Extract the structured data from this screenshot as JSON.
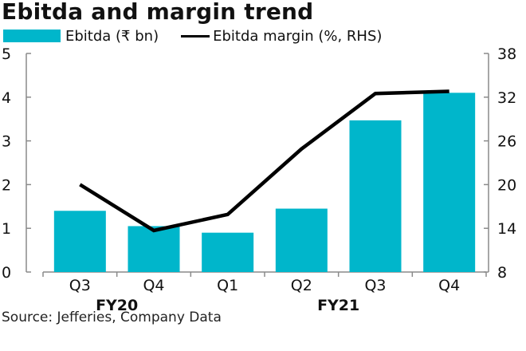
{
  "chart_data": {
    "type": "bar",
    "title": "Ebitda and margin trend",
    "categories": [
      "Q3",
      "Q4",
      "Q1",
      "Q2",
      "Q3",
      "Q4"
    ],
    "groups": [
      {
        "label": "FY20",
        "categories_index": [
          0,
          1
        ]
      },
      {
        "label": "FY21",
        "categories_index": [
          2,
          3,
          4,
          5
        ]
      }
    ],
    "series": [
      {
        "name": "Ebitda (₹ bn)",
        "type": "bar",
        "axis": "left",
        "color": "#00B6CB",
        "values": [
          1.4,
          1.05,
          0.9,
          1.45,
          3.47,
          4.1
        ]
      },
      {
        "name": "Ebitda margin (%, RHS)",
        "type": "line",
        "axis": "right",
        "color": "#000000",
        "values": [
          20.0,
          13.7,
          15.9,
          24.9,
          32.5,
          32.8
        ]
      }
    ],
    "left_axis": {
      "ylim": [
        0,
        5
      ],
      "ticks": [
        "0",
        "1",
        "2",
        "3",
        "4",
        "5"
      ]
    },
    "right_axis": {
      "ylim": [
        8,
        38
      ],
      "ticks": [
        "8",
        "14",
        "20",
        "26",
        "32",
        "38"
      ]
    },
    "xlabel": "",
    "ylabel": "",
    "grid": false,
    "legend": "top-left",
    "source": "Source: Jefferies, Company Data"
  }
}
